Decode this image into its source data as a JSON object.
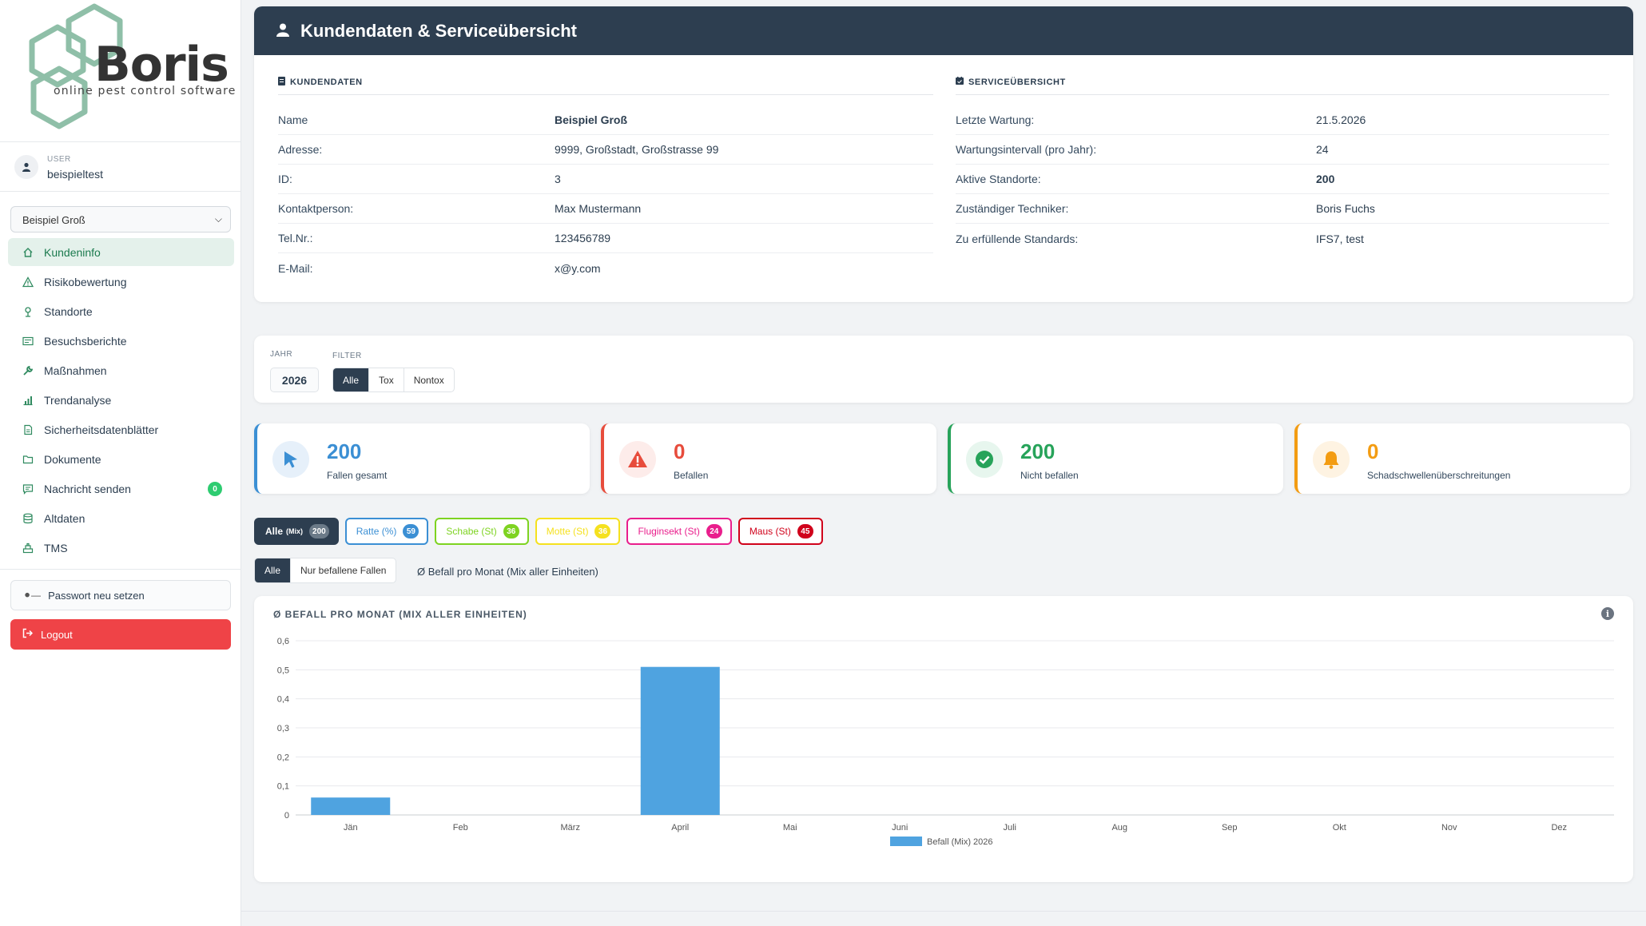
{
  "app": {
    "brand": "Boris",
    "tagline": "online pest control software"
  },
  "user": {
    "label": "USER",
    "name": "beispieltest"
  },
  "customer_select": {
    "value": "Beispiel Groß"
  },
  "nav": [
    {
      "label": "Kundeninfo",
      "icon": "home-icon",
      "active": true
    },
    {
      "label": "Risikobewertung",
      "icon": "warning-icon"
    },
    {
      "label": "Standorte",
      "icon": "location-icon"
    },
    {
      "label": "Besuchsberichte",
      "icon": "report-icon"
    },
    {
      "label": "Maßnahmen",
      "icon": "wrench-icon"
    },
    {
      "label": "Trendanalyse",
      "icon": "chart-icon"
    },
    {
      "label": "Sicherheitsdatenblätter",
      "icon": "document-icon"
    },
    {
      "label": "Dokumente",
      "icon": "folder-icon"
    },
    {
      "label": "Nachricht senden",
      "icon": "message-icon",
      "badge": "0"
    },
    {
      "label": "Altdaten",
      "icon": "database-icon"
    },
    {
      "label": "TMS",
      "icon": "tms-icon"
    }
  ],
  "actions": {
    "password": "Passwort neu setzen",
    "logout": "Logout"
  },
  "header": {
    "title": "Kundendaten & Serviceübersicht"
  },
  "kundendaten": {
    "title": "KUNDENDATEN",
    "rows": [
      {
        "key": "Name",
        "value": "Beispiel Groß"
      },
      {
        "key": "Adresse:",
        "value": "9999, Großstadt, Großstrasse 99"
      },
      {
        "key": "ID:",
        "value": "3"
      },
      {
        "key": "Kontaktperson:",
        "value": "Max Mustermann"
      },
      {
        "key": "Tel.Nr.:",
        "value": "123456789"
      },
      {
        "key": "E-Mail:",
        "value": "x@y.com"
      }
    ]
  },
  "service": {
    "title": "SERVICEÜBERSICHT",
    "rows": [
      {
        "key": "Letzte Wartung:",
        "value": "21.5.2026"
      },
      {
        "key": "Wartungsintervall (pro Jahr):",
        "value": "24"
      },
      {
        "key": "Aktive Standorte:",
        "value": "200"
      },
      {
        "key": "Zuständiger Techniker:",
        "value": "Boris Fuchs"
      },
      {
        "key": "Zu erfüllende Standards:",
        "value": "IFS7, test"
      }
    ]
  },
  "filters": {
    "year_label": "JAHR",
    "year": "2026",
    "filter_label": "FILTER",
    "options": [
      "Alle",
      "Tox",
      "Nontox"
    ]
  },
  "stats": [
    {
      "value": "200",
      "label": "Fallen gesamt",
      "color": "#3b8fd4"
    },
    {
      "value": "0",
      "label": "Befallen",
      "color": "#e74c3c"
    },
    {
      "value": "200",
      "label": "Nicht befallen",
      "color": "#27a35a"
    },
    {
      "value": "0",
      "label": "Schadschwellenüberschreitungen",
      "color": "#f39c12"
    }
  ],
  "pests": [
    {
      "label": "Alle",
      "unit": "(Mix)",
      "count": "200",
      "color": "#2d3e50"
    },
    {
      "label": "Ratte (%)",
      "count": "59",
      "color": "#3b8fd4"
    },
    {
      "label": "Schabe (St)",
      "count": "36",
      "color": "#7ed321"
    },
    {
      "label": "Motte (St)",
      "count": "36",
      "color": "#f5e11f"
    },
    {
      "label": "Fluginsekt (St)",
      "count": "24",
      "color": "#e91e8c"
    },
    {
      "label": "Maus (St)",
      "count": "45",
      "color": "#d0021b"
    }
  ],
  "toggle": {
    "options": [
      "Alle",
      "Nur befallene Fallen"
    ],
    "text": "Ø Befall pro Monat (Mix aller Einheiten)"
  },
  "chart_data": {
    "type": "bar",
    "title": "Ø BEFALL PRO MONAT (MIX ALLER EINHEITEN)",
    "categories": [
      "Jän",
      "Feb",
      "März",
      "April",
      "Mai",
      "Juni",
      "Juli",
      "Aug",
      "Sep",
      "Okt",
      "Nov",
      "Dez"
    ],
    "series": [
      {
        "name": "Befall (Mix) 2026",
        "values": [
          0.06,
          0,
          0,
          0.51,
          0,
          0,
          0,
          0,
          0,
          0,
          0,
          0
        ],
        "color": "#4fa3e0"
      }
    ],
    "ylim": [
      0,
      0.6
    ],
    "yticks": [
      "0",
      "0,1",
      "0,2",
      "0,3",
      "0,4",
      "0,5",
      "0,6"
    ],
    "grid": true,
    "legend": "bottom"
  }
}
